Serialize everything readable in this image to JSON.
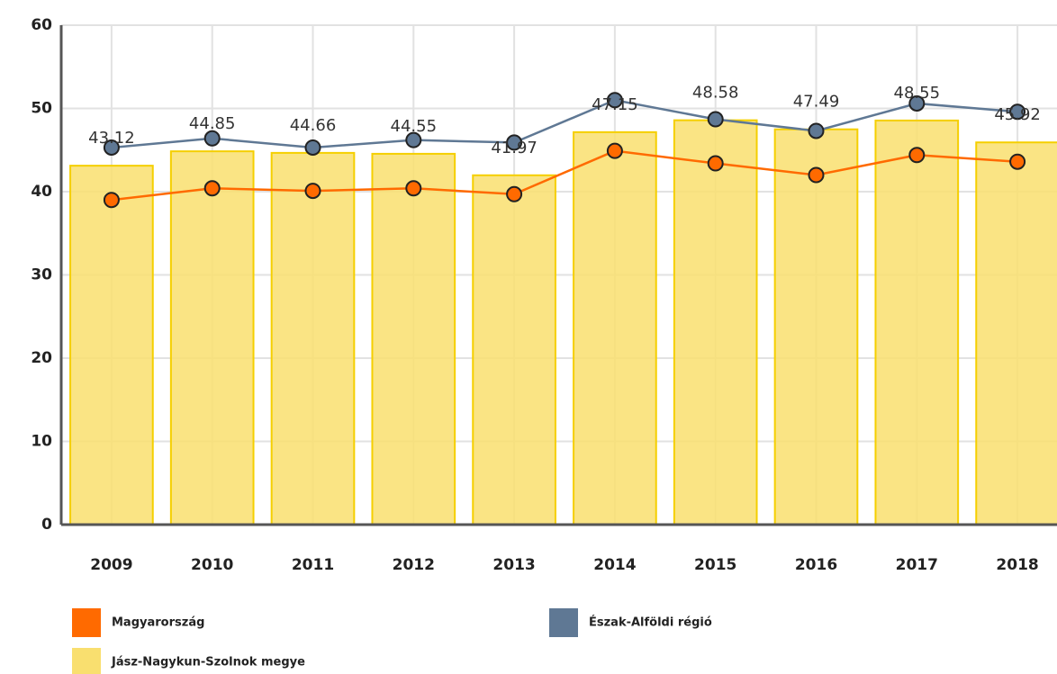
{
  "chart_data": {
    "type": "bar-line",
    "categories": [
      "2009",
      "2010",
      "2011",
      "2012",
      "2013",
      "2014",
      "2015",
      "2016",
      "2017",
      "2018"
    ],
    "series": [
      {
        "name": "Jász-Nagykun-Szolnok megye",
        "type": "bar",
        "color": "#f9df6f",
        "values": [
          43.12,
          44.85,
          44.66,
          44.55,
          41.97,
          47.15,
          48.58,
          47.49,
          48.55,
          45.92
        ]
      },
      {
        "name": "Magyarország",
        "type": "line",
        "color": "#ff6a00",
        "values": [
          39.0,
          40.4,
          40.1,
          40.4,
          39.7,
          44.9,
          43.4,
          42.0,
          44.4,
          43.6
        ]
      },
      {
        "name": "Észak-Alföldi régió",
        "type": "line",
        "color": "#5f7894",
        "values": [
          45.3,
          46.4,
          45.3,
          46.2,
          45.9,
          51.0,
          48.7,
          47.3,
          50.6,
          49.6
        ]
      }
    ],
    "ylim": [
      0,
      60
    ],
    "yticks": [
      0,
      10,
      20,
      30,
      40,
      50,
      60
    ],
    "grid": true
  }
}
